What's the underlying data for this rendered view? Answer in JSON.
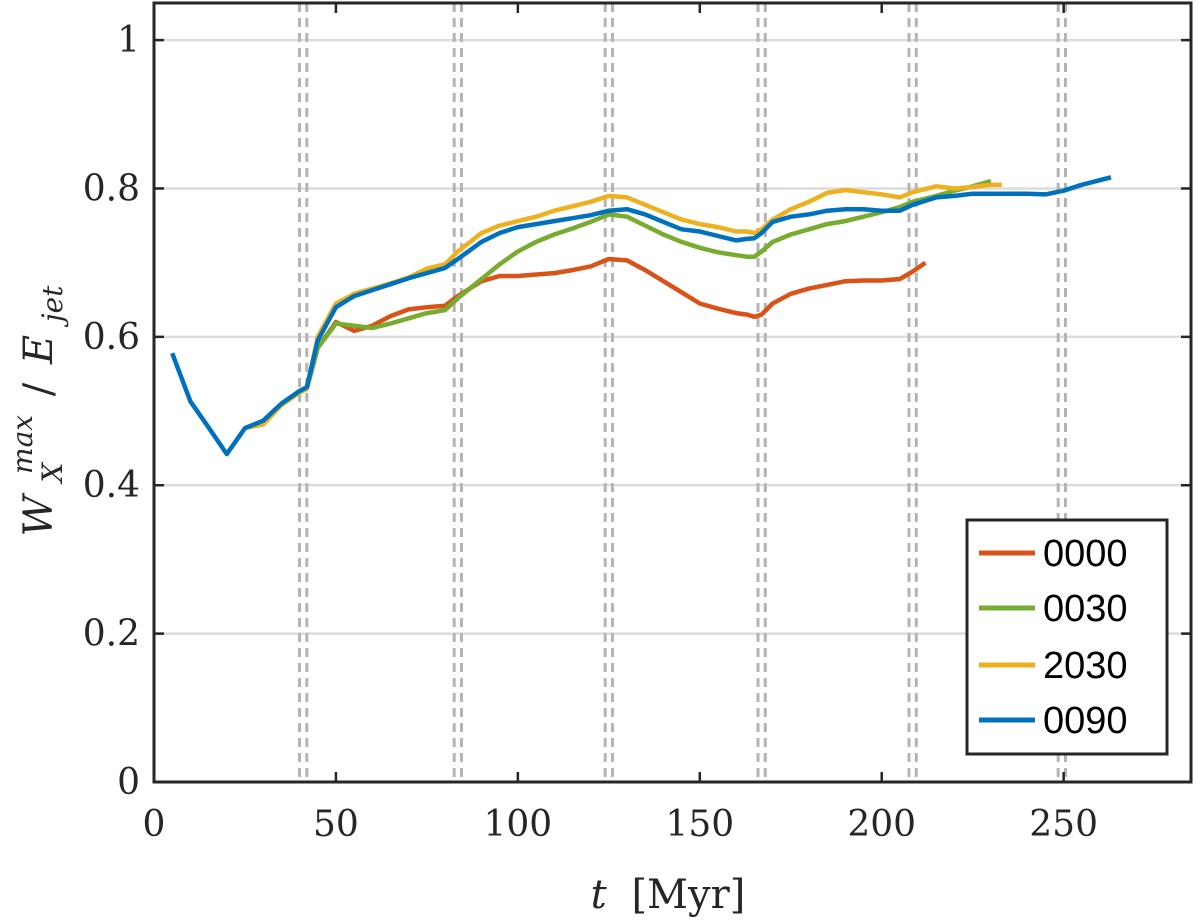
{
  "chart_data": {
    "type": "line",
    "xlabel_var": "t",
    "xlabel_unit": "[Myr]",
    "ylabel_main": "W",
    "ylabel_sup": "max",
    "ylabel_sub": "X",
    "ylabel_div": "/",
    "ylabel_denom": "E",
    "ylabel_denom_sub": "jet",
    "xlim": [
      0,
      285
    ],
    "ylim": [
      0,
      1.05
    ],
    "xticks": [
      0,
      50,
      100,
      150,
      200,
      250
    ],
    "xtick_labels": [
      "0",
      "50",
      "100",
      "150",
      "200",
      "250"
    ],
    "yticks": [
      0,
      0.2,
      0.4,
      0.6,
      0.8,
      1
    ],
    "ytick_labels": [
      "0",
      "0.2",
      "0.4",
      "0.6",
      "0.8",
      "1"
    ],
    "grid": "y",
    "legend_position": "bottom-right",
    "vertical_dashed_lines": [
      40,
      42,
      82.5,
      84.5,
      124,
      126,
      166,
      168,
      207.5,
      209.5,
      248.5,
      250.5
    ],
    "series": [
      {
        "name": "0000",
        "color": "#D95319",
        "x": [
          40,
          42,
          45,
          50,
          55,
          60,
          65,
          70,
          75,
          80,
          83.5,
          90,
          95,
          100,
          105,
          110,
          115,
          120,
          125,
          130,
          135,
          140,
          145,
          150,
          155,
          160,
          163,
          165,
          167,
          170,
          175,
          180,
          185,
          190,
          195,
          200,
          205,
          208.5,
          212
        ],
        "y": [
          0.525,
          0.53,
          0.585,
          0.62,
          0.608,
          0.615,
          0.628,
          0.637,
          0.64,
          0.642,
          0.655,
          0.675,
          0.682,
          0.682,
          0.684,
          0.686,
          0.69,
          0.695,
          0.705,
          0.703,
          0.69,
          0.675,
          0.66,
          0.645,
          0.638,
          0.632,
          0.63,
          0.627,
          0.63,
          0.645,
          0.658,
          0.665,
          0.67,
          0.675,
          0.676,
          0.676,
          0.678,
          0.688,
          0.7
        ]
      },
      {
        "name": "0030",
        "color": "#77AC30",
        "x": [
          40,
          42,
          45,
          50,
          55,
          60,
          65,
          70,
          75,
          80,
          83.5,
          90,
          95,
          100,
          105,
          110,
          115,
          120,
          125,
          130,
          135,
          140,
          145,
          150,
          155,
          160,
          163,
          165,
          167,
          170,
          175,
          180,
          185,
          190,
          195,
          200,
          205,
          208.5,
          215,
          220,
          225,
          230
        ],
        "y": [
          0.525,
          0.53,
          0.585,
          0.618,
          0.615,
          0.612,
          0.618,
          0.625,
          0.632,
          0.636,
          0.652,
          0.678,
          0.698,
          0.715,
          0.728,
          0.738,
          0.746,
          0.755,
          0.765,
          0.762,
          0.75,
          0.738,
          0.728,
          0.72,
          0.714,
          0.71,
          0.708,
          0.708,
          0.715,
          0.728,
          0.738,
          0.745,
          0.752,
          0.756,
          0.762,
          0.768,
          0.775,
          0.782,
          0.79,
          0.797,
          0.803,
          0.81
        ]
      },
      {
        "name": "2030",
        "color": "#EDB120",
        "x": [
          25,
          30,
          35,
          40,
          42,
          45,
          50,
          55,
          60,
          65,
          70,
          75,
          80,
          83.5,
          90,
          95,
          100,
          105,
          110,
          115,
          120,
          125,
          130,
          135,
          140,
          145,
          150,
          155,
          160,
          163,
          165,
          167,
          170,
          175,
          180,
          185,
          190,
          195,
          200,
          205,
          208.5,
          215,
          220,
          225,
          230,
          233
        ],
        "y": [
          0.477,
          0.482,
          0.508,
          0.525,
          0.53,
          0.6,
          0.645,
          0.658,
          0.665,
          0.672,
          0.68,
          0.692,
          0.698,
          0.715,
          0.74,
          0.75,
          0.756,
          0.762,
          0.77,
          0.776,
          0.782,
          0.79,
          0.788,
          0.778,
          0.768,
          0.758,
          0.752,
          0.748,
          0.742,
          0.742,
          0.74,
          0.745,
          0.758,
          0.772,
          0.782,
          0.794,
          0.798,
          0.795,
          0.792,
          0.788,
          0.795,
          0.803,
          0.8,
          0.802,
          0.805,
          0.805
        ]
      },
      {
        "name": "0090",
        "color": "#0072BD",
        "x": [
          5,
          10,
          15,
          20,
          25,
          30,
          35,
          40,
          42,
          45,
          50,
          55,
          60,
          65,
          70,
          75,
          80,
          83.5,
          90,
          95,
          100,
          105,
          110,
          115,
          120,
          125,
          130,
          135,
          140,
          145,
          150,
          155,
          160,
          163,
          165,
          167,
          170,
          175,
          180,
          185,
          190,
          195,
          200,
          205,
          208.5,
          215,
          220,
          225,
          230,
          235,
          240,
          245,
          250,
          255,
          263
        ],
        "y": [
          0.578,
          0.513,
          0.478,
          0.442,
          0.477,
          0.487,
          0.51,
          0.527,
          0.532,
          0.595,
          0.64,
          0.655,
          0.663,
          0.671,
          0.679,
          0.686,
          0.693,
          0.705,
          0.728,
          0.74,
          0.748,
          0.752,
          0.756,
          0.76,
          0.764,
          0.77,
          0.772,
          0.765,
          0.755,
          0.745,
          0.742,
          0.736,
          0.73,
          0.732,
          0.733,
          0.74,
          0.755,
          0.762,
          0.765,
          0.77,
          0.772,
          0.772,
          0.77,
          0.77,
          0.778,
          0.788,
          0.79,
          0.793,
          0.793,
          0.793,
          0.793,
          0.792,
          0.797,
          0.805,
          0.815
        ]
      }
    ]
  }
}
